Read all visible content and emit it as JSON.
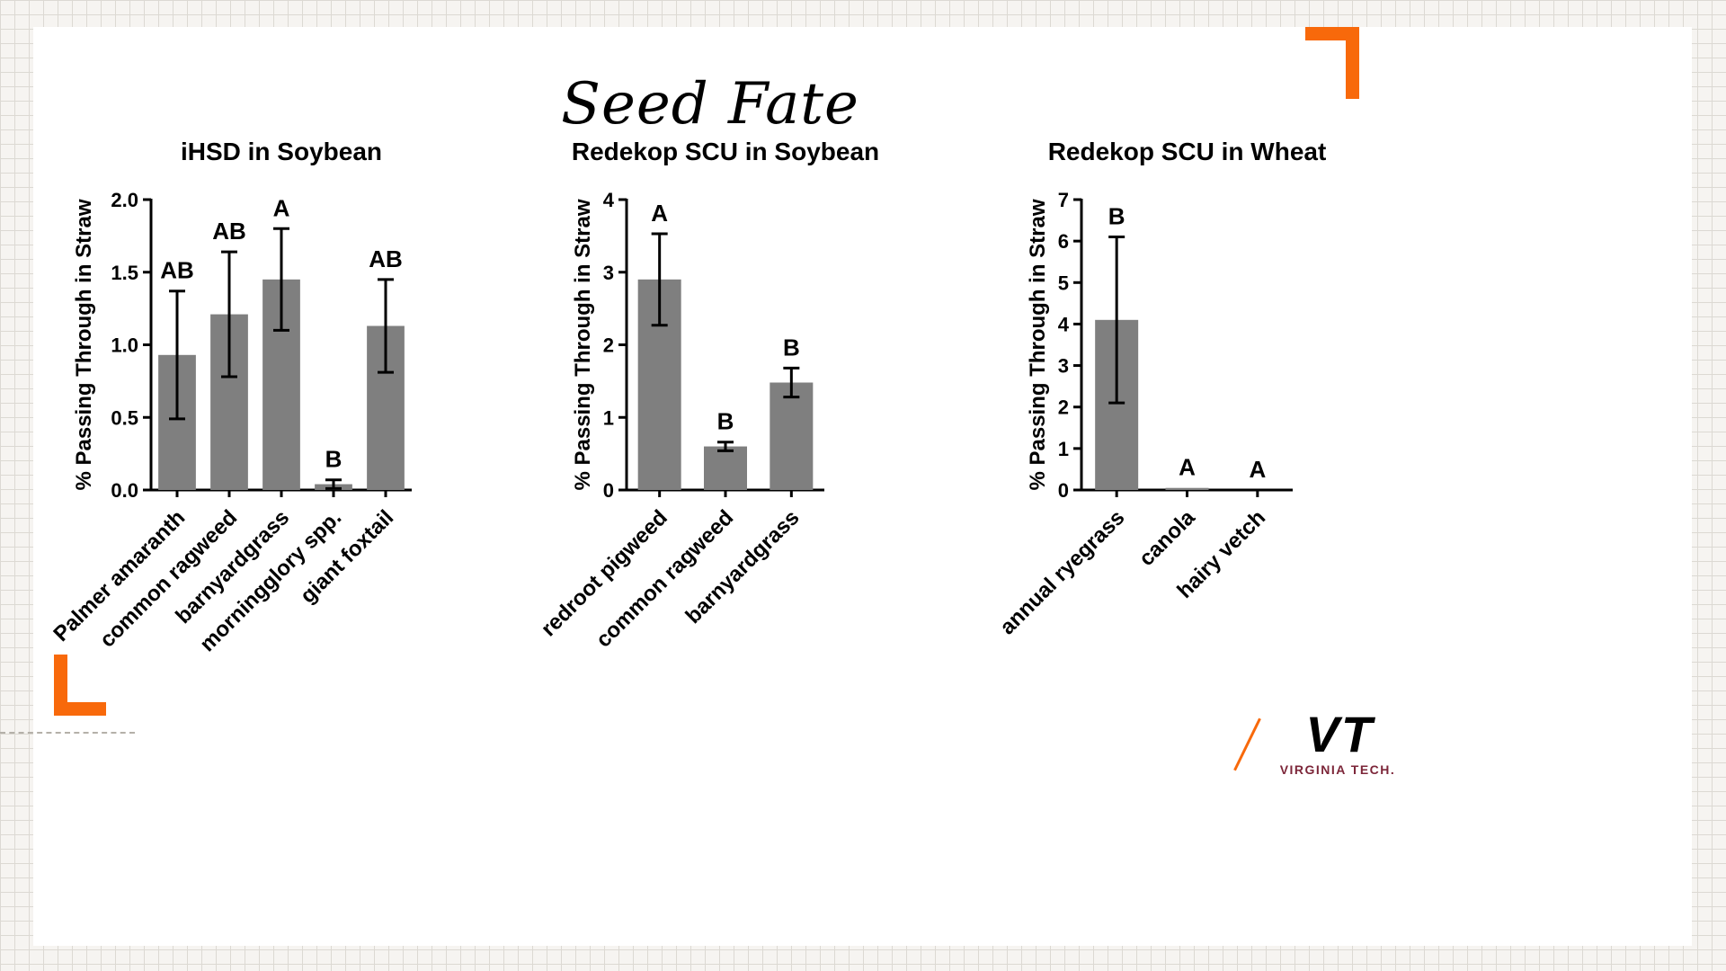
{
  "slide": {
    "title": "Seed Fate",
    "logo": {
      "monogram_v": "V",
      "monogram_t": "T",
      "wordmark": "VIRGINIA TECH."
    }
  },
  "colors": {
    "accent_orange": "#f8690b",
    "vt_maroon": "#7c2639",
    "bar_gray": "#7f7f7f"
  },
  "chart_data": [
    {
      "type": "bar",
      "title": "iHSD in Soybean",
      "ylabel": "% Passing Through in Straw",
      "xlabel": "",
      "ylim": [
        0,
        2.0
      ],
      "yticks": [
        0,
        0.5,
        1.0,
        1.5,
        2.0
      ],
      "ytick_labels": [
        "0.0",
        "0.5",
        "1.0",
        "1.5",
        "2.0"
      ],
      "categories": [
        "Palmer amaranth",
        "common ragweed",
        "barnyardgrass",
        "morningglory spp.",
        "giant foxtail"
      ],
      "values": [
        0.93,
        1.21,
        1.45,
        0.04,
        1.13
      ],
      "errors": [
        0.44,
        0.43,
        0.35,
        0.03,
        0.32
      ],
      "sig_labels": [
        "AB",
        "AB",
        "A",
        "B",
        "AB"
      ],
      "grid": false,
      "legend": "none"
    },
    {
      "type": "bar",
      "title": "Redekop SCU in Soybean",
      "ylabel": "% Passing Through in Straw",
      "xlabel": "",
      "ylim": [
        0,
        4
      ],
      "yticks": [
        0,
        1,
        2,
        3,
        4
      ],
      "ytick_labels": [
        "0",
        "1",
        "2",
        "3",
        "4"
      ],
      "categories": [
        "redroot pigweed",
        "common ragweed",
        "barnyardgrass"
      ],
      "values": [
        2.9,
        0.6,
        1.48
      ],
      "errors": [
        0.63,
        0.06,
        0.2
      ],
      "sig_labels": [
        "A",
        "B",
        "B"
      ],
      "grid": false,
      "legend": "none"
    },
    {
      "type": "bar",
      "title": "Redekop SCU in Wheat",
      "ylabel": "% Passing Through in Straw",
      "xlabel": "",
      "ylim": [
        0,
        7
      ],
      "yticks": [
        0,
        1,
        2,
        3,
        4,
        5,
        6,
        7
      ],
      "ytick_labels": [
        "0",
        "1",
        "2",
        "3",
        "4",
        "5",
        "6",
        "7"
      ],
      "categories": [
        "annual ryegrass",
        "canola",
        "hairy vetch"
      ],
      "values": [
        4.1,
        0.05,
        0.0
      ],
      "errors": [
        2.0,
        0.0,
        0.0
      ],
      "sig_labels": [
        "B",
        "A",
        "A"
      ],
      "grid": false,
      "legend": "none"
    }
  ]
}
